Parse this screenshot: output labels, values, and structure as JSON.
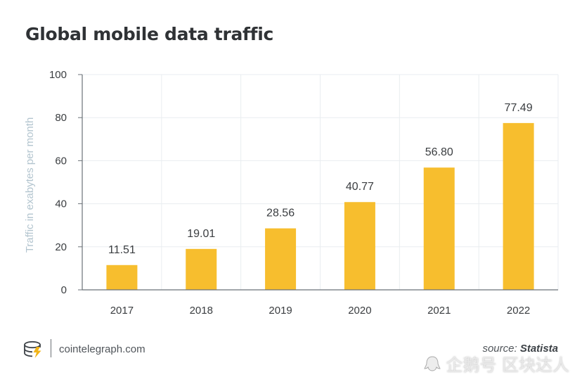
{
  "header": {
    "title": "Global mobile data traffic"
  },
  "chart_data": {
    "type": "bar",
    "title": "Global mobile data traffic",
    "xlabel": "",
    "ylabel": "Traffic in exabytes per month",
    "categories": [
      "2017",
      "2018",
      "2019",
      "2020",
      "2021",
      "2022"
    ],
    "values": [
      11.51,
      19.01,
      28.56,
      40.77,
      56.8,
      77.49
    ],
    "value_labels": [
      "11.51",
      "19.01",
      "28.56",
      "40.77",
      "56.80",
      "77.49"
    ],
    "ylim": [
      0,
      100
    ],
    "yticks": [
      0,
      20,
      40,
      60,
      80,
      100
    ],
    "grid": true,
    "bar_color": "#f7be2e",
    "grid_color": "#e9edf0",
    "axis_color": "#6b7278",
    "ylabel_color": "#b3c5cf"
  },
  "footer": {
    "site": "cointelegraph.com",
    "source_label": "source:",
    "source_name": "Statista",
    "watermark": "企鹅号 区块达人"
  },
  "colors": {
    "title": "#2f3235",
    "text": "#3a3d40",
    "logo": "#f2b418"
  }
}
